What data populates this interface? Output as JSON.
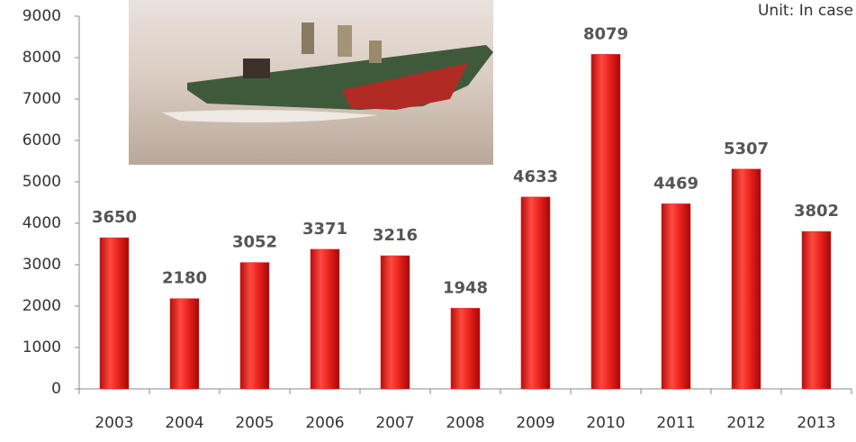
{
  "chart_data": {
    "type": "bar",
    "annotation": "Unit: In case",
    "categories": [
      "2003",
      "2004",
      "2005",
      "2006",
      "2007",
      "2008",
      "2009",
      "2010",
      "2011",
      "2012",
      "2013"
    ],
    "values": [
      3650,
      2180,
      3052,
      3371,
      3216,
      1948,
      4633,
      8079,
      4469,
      5307,
      3802
    ],
    "color": "#e8201c",
    "ylim": [
      0,
      9000
    ],
    "yticks": [
      0,
      1000,
      2000,
      3000,
      4000,
      5000,
      6000,
      7000,
      8000,
      9000
    ],
    "grid": false
  }
}
